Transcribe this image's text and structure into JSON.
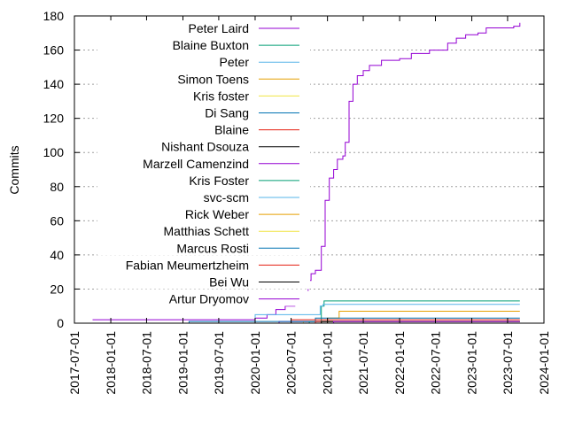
{
  "chart_data": {
    "type": "line",
    "ylabel": "Commits",
    "xlabel": "",
    "ylim": [
      0,
      180
    ],
    "xlim": [
      "2017-07-01",
      "2024-01-01"
    ],
    "y_ticks": [
      "0",
      "20",
      "40",
      "60",
      "80",
      "100",
      "120",
      "140",
      "160",
      "180"
    ],
    "x_ticks": [
      "2017-07-01",
      "2018-01-01",
      "2018-07-01",
      "2019-01-01",
      "2019-07-01",
      "2020-01-01",
      "2020-07-01",
      "2021-01-01",
      "2021-07-01",
      "2022-01-01",
      "2022-07-01",
      "2023-01-01",
      "2023-07-01",
      "2024-01-01"
    ],
    "grid": true,
    "legend_position": "top-left",
    "series": [
      {
        "name": "Peter Laird",
        "color": "#9400d3",
        "points": [
          [
            "2017-10-01",
            2
          ],
          [
            "2019-12-01",
            2
          ],
          [
            "2020-01-01",
            3
          ],
          [
            "2020-03-01",
            5
          ],
          [
            "2020-04-15",
            8
          ],
          [
            "2020-06-01",
            10
          ],
          [
            "2020-07-20",
            12
          ],
          [
            "2020-08-20",
            15
          ],
          [
            "2020-09-10",
            18
          ],
          [
            "2020-09-25",
            25
          ],
          [
            "2020-10-10",
            29
          ],
          [
            "2020-11-01",
            31
          ],
          [
            "2020-11-20",
            31
          ],
          [
            "2020-12-01",
            45
          ],
          [
            "2020-12-20",
            72
          ],
          [
            "2021-01-10",
            85
          ],
          [
            "2021-02-01",
            90
          ],
          [
            "2021-02-20",
            96
          ],
          [
            "2021-03-20",
            98
          ],
          [
            "2021-04-01",
            106
          ],
          [
            "2021-04-20",
            130
          ],
          [
            "2021-05-10",
            140
          ],
          [
            "2021-06-01",
            145
          ],
          [
            "2021-07-01",
            148
          ],
          [
            "2021-08-01",
            151
          ],
          [
            "2021-10-01",
            154
          ],
          [
            "2022-01-01",
            155
          ],
          [
            "2022-03-01",
            158
          ],
          [
            "2022-06-01",
            160
          ],
          [
            "2022-09-01",
            164
          ],
          [
            "2022-10-15",
            167
          ],
          [
            "2022-12-01",
            169
          ],
          [
            "2023-02-01",
            170
          ],
          [
            "2023-03-15",
            173
          ],
          [
            "2023-08-01",
            174
          ],
          [
            "2023-09-01",
            176
          ]
        ]
      },
      {
        "name": "Blaine Buxton",
        "color": "#009e73",
        "points": [
          [
            "2020-11-01",
            0
          ],
          [
            "2020-12-01",
            10
          ],
          [
            "2020-12-15",
            13
          ],
          [
            "2023-09-01",
            13
          ]
        ]
      },
      {
        "name": "Peter",
        "color": "#56b4e9",
        "points": [
          [
            "2019-12-01",
            0
          ],
          [
            "2020-01-01",
            5
          ],
          [
            "2020-11-20",
            5
          ],
          [
            "2020-11-25",
            10
          ],
          [
            "2020-12-10",
            11
          ],
          [
            "2023-09-01",
            11
          ]
        ]
      },
      {
        "name": "Simon Toens",
        "color": "#e69f00",
        "points": [
          [
            "2020-12-01",
            0
          ],
          [
            "2021-01-01",
            3
          ],
          [
            "2021-03-01",
            7
          ],
          [
            "2023-09-01",
            7
          ]
        ]
      },
      {
        "name": "Kris foster",
        "color": "#f0e442",
        "points": [
          [
            "2020-08-01",
            0
          ],
          [
            "2020-09-01",
            1
          ],
          [
            "2023-09-01",
            1
          ]
        ]
      },
      {
        "name": "Di Sang",
        "color": "#0072b2",
        "points": [
          [
            "2020-10-01",
            0
          ],
          [
            "2020-11-01",
            3
          ],
          [
            "2023-09-01",
            3
          ]
        ]
      },
      {
        "name": "Blaine",
        "color": "#e51e10",
        "points": [
          [
            "2020-06-01",
            0
          ],
          [
            "2020-07-01",
            2
          ],
          [
            "2023-09-01",
            2
          ]
        ]
      },
      {
        "name": "Nishant Dsouza",
        "color": "#000000",
        "points": [
          [
            "2020-06-01",
            0
          ],
          [
            "2020-07-01",
            1
          ],
          [
            "2023-09-01",
            1
          ]
        ]
      },
      {
        "name": "Marzell Camenzind",
        "color": "#9400d3",
        "points": [
          [
            "2020-04-01",
            0
          ],
          [
            "2020-05-01",
            1
          ],
          [
            "2023-09-01",
            1
          ]
        ]
      },
      {
        "name": "Kris Foster",
        "color": "#009e73",
        "points": [
          [
            "2020-09-01",
            0
          ],
          [
            "2020-10-01",
            1
          ],
          [
            "2023-09-01",
            1
          ]
        ]
      },
      {
        "name": "svc-scm",
        "color": "#56b4e9",
        "points": [
          [
            "2017-10-01",
            0
          ],
          [
            "2023-09-01",
            0
          ]
        ]
      },
      {
        "name": "Rick Weber",
        "color": "#e69f00",
        "points": [
          [
            "2020-11-01",
            0
          ],
          [
            "2020-12-01",
            1
          ],
          [
            "2023-09-01",
            1
          ]
        ]
      },
      {
        "name": "Matthias Schett",
        "color": "#f0e442",
        "points": [
          [
            "2020-12-01",
            0
          ],
          [
            "2021-01-01",
            1
          ],
          [
            "2023-09-01",
            1
          ]
        ]
      },
      {
        "name": "Marcus Rosti",
        "color": "#0072b2",
        "points": [
          [
            "2019-01-01",
            0
          ],
          [
            "2019-02-01",
            1
          ],
          [
            "2023-09-01",
            1
          ]
        ]
      },
      {
        "name": "Fabian Meumertzheim",
        "color": "#e51e10",
        "points": [
          [
            "2020-10-01",
            0
          ],
          [
            "2020-11-01",
            1
          ],
          [
            "2023-09-01",
            1
          ]
        ]
      },
      {
        "name": "Bei Wu",
        "color": "#000000",
        "points": [
          [
            "2020-11-01",
            0
          ],
          [
            "2020-12-01",
            1
          ],
          [
            "2023-09-01",
            1
          ]
        ]
      },
      {
        "name": "Artur Dryomov",
        "color": "#9400d3",
        "points": [
          [
            "2021-01-01",
            0
          ],
          [
            "2021-02-01",
            1
          ],
          [
            "2023-09-01",
            1
          ]
        ]
      }
    ]
  }
}
